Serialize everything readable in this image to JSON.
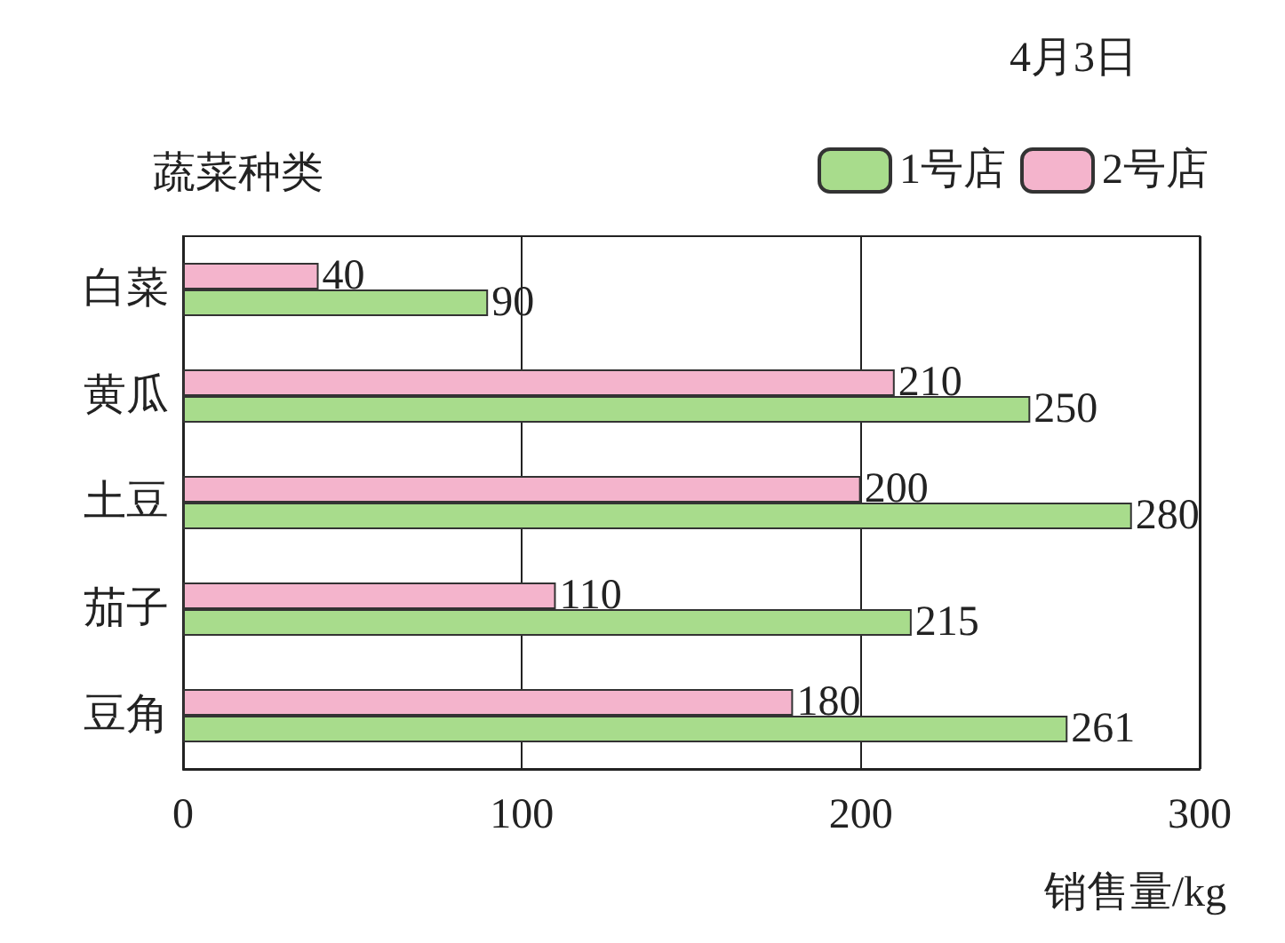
{
  "chart_data": {
    "type": "bar",
    "orientation": "horizontal",
    "title": "4月3日",
    "ylabel": "蔬菜种类",
    "xlabel": "销售量/kg",
    "categories": [
      "白菜",
      "黄瓜",
      "土豆",
      "茄子",
      "豆角"
    ],
    "series": [
      {
        "name": "1号店",
        "color": "#a8dc8c",
        "values": [
          90,
          250,
          280,
          215,
          261
        ]
      },
      {
        "name": "2号店",
        "color": "#f4b4cc",
        "values": [
          40,
          210,
          200,
          110,
          180
        ]
      }
    ],
    "xlim": [
      0,
      300
    ],
    "xticks": [
      0,
      100,
      200,
      300
    ],
    "grid": "x",
    "legend": "top right",
    "data_labels": true
  }
}
